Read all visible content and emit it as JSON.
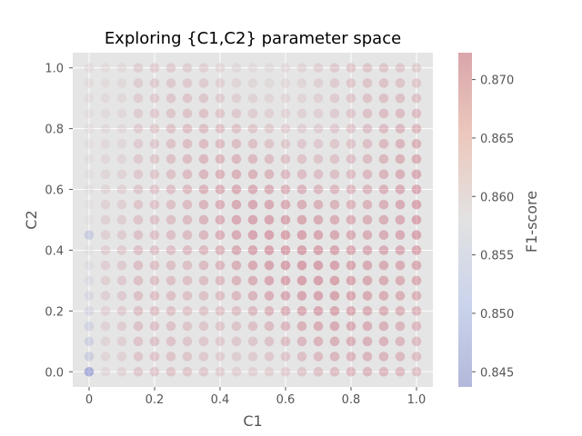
{
  "chart_data": {
    "type": "scatter",
    "title": "Exploring {C1,C2} parameter space",
    "xlabel": "C1",
    "ylabel": "C2",
    "colorbar_label": "F1-score",
    "xlim": [
      -0.05,
      1.05
    ],
    "ylim": [
      -0.05,
      1.05
    ],
    "x_ticks": [
      0.0,
      0.2,
      0.4,
      0.6,
      0.8,
      1.0
    ],
    "x_tick_labels": [
      "0",
      "0.2",
      "0.4",
      "0.6",
      "0.8",
      "1.0"
    ],
    "y_ticks": [
      0.0,
      0.2,
      0.4,
      0.6,
      0.8,
      1.0
    ],
    "y_tick_labels": [
      "0.0",
      "0.2",
      "0.4",
      "0.6",
      "0.8",
      "1.0"
    ],
    "grid": true,
    "grid_values": [
      0,
      0.05,
      0.1,
      0.15,
      0.2,
      0.25,
      0.3,
      0.35,
      0.4,
      0.45,
      0.5,
      0.55,
      0.6,
      0.65,
      0.7,
      0.75,
      0.8,
      0.85,
      0.9,
      0.95,
      1.0
    ],
    "color_range": [
      0.8437,
      0.8723
    ],
    "colorbar_ticks": [
      0.845,
      0.85,
      0.855,
      0.86,
      0.865,
      0.87
    ],
    "colorbar_tick_labels": [
      "0.845",
      "0.850",
      "0.855",
      "0.860",
      "0.865",
      "0.870"
    ],
    "colormap": "coolwarm",
    "marker_alpha": 0.35,
    "values_description_note": "",
    "anchors": [
      {
        "c1": 0.0,
        "c2": 0.0,
        "f1": 0.8437
      },
      {
        "c1": 0.0,
        "c2": 0.45,
        "f1": 0.852
      }
    ]
  },
  "colors": {
    "plot_background": "#e5e5e5",
    "grid": "#ffffff",
    "cool": "#3b4cc0",
    "neutral": "#dddddd",
    "warm": "#b40426"
  }
}
